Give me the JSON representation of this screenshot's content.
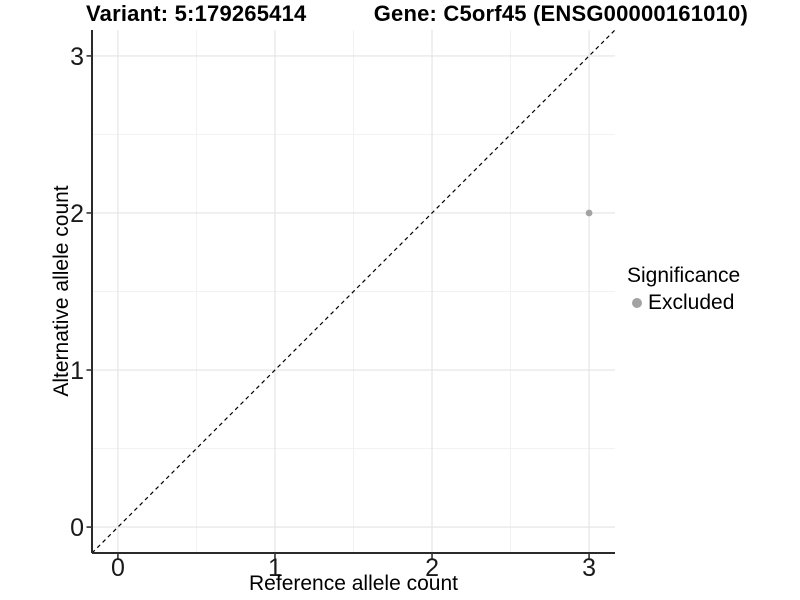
{
  "header": {
    "variant_title": "Variant: 5:179265414",
    "gene_title": "Gene: C5orf45 (ENSG00000161010)"
  },
  "chart_data": {
    "type": "scatter",
    "xlabel": "Reference allele count",
    "ylabel": "Alternative allele count",
    "xlim": [
      -0.165,
      3.165
    ],
    "ylim": [
      -0.165,
      3.165
    ],
    "x_ticks": [
      0,
      1,
      2,
      3
    ],
    "y_ticks": [
      0,
      1,
      2,
      3
    ],
    "minor_gridlines": [
      0.5,
      1.5,
      2.5
    ],
    "grid": true,
    "reference_line": {
      "type": "identity",
      "style": "dashed",
      "color": "#000000"
    },
    "series": [
      {
        "name": "Excluded",
        "color": "#a3a3a3",
        "points": [
          {
            "x": 3,
            "y": 2
          }
        ]
      }
    ],
    "legend": {
      "title": "Significance",
      "position": "right"
    },
    "colors": {
      "point": "#a3a3a3",
      "grid_major": "#e3e3e3",
      "grid_minor": "#f1f1f1",
      "axis_line": "#2a2a2a",
      "tick_mark": "#333333",
      "tick_label": "#1a1a1a"
    }
  }
}
